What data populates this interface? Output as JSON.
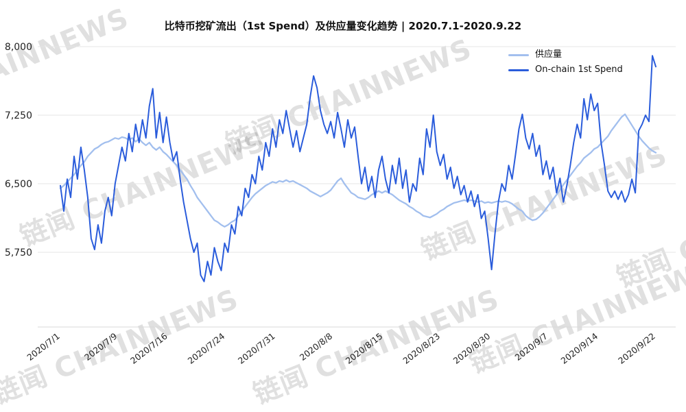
{
  "watermark": {
    "text": "链闻 CHAINNEWS"
  },
  "chart_data": {
    "type": "line",
    "title": "比特币挖矿流出（1st Spend）及供应量变化趋势 | 2020.7.1-2020.9.22",
    "grid": "horizontal",
    "legend_position": "top-right",
    "y_ticks": [
      8000,
      7250,
      6500,
      5750
    ],
    "y_tick_labels": [
      "8,000",
      "7,250",
      "6,500",
      "5,750"
    ],
    "ylim": [
      5000,
      8000
    ],
    "x_tick_labels": [
      "2020/7/1",
      "2020/7/9",
      "2020/7/16",
      "2020/7/24",
      "2020/7/31",
      "2020/8/8",
      "2020/8/15",
      "2020/8/23",
      "2020/8/30",
      "2020/9/7",
      "2020/9/14",
      "2020/9/22"
    ],
    "x_tick_days": [
      0,
      8,
      15,
      23,
      30,
      38,
      45,
      53,
      60,
      68,
      75,
      83
    ],
    "series": [
      {
        "name": "供应量",
        "color": "#a2bfee",
        "values": [
          6450,
          6480,
          6520,
          6560,
          6600,
          6650,
          6700,
          6740,
          6800,
          6840,
          6880,
          6900,
          6930,
          6950,
          6960,
          6980,
          7000,
          6990,
          7010,
          7000,
          6980,
          7000,
          6960,
          6990,
          6950,
          6920,
          6950,
          6900,
          6870,
          6900,
          6850,
          6820,
          6780,
          6740,
          6700,
          6650,
          6600,
          6550,
          6480,
          6420,
          6350,
          6300,
          6250,
          6200,
          6150,
          6100,
          6080,
          6050,
          6030,
          6050,
          6080,
          6100,
          6150,
          6200,
          6250,
          6300,
          6350,
          6390,
          6420,
          6450,
          6480,
          6500,
          6520,
          6510,
          6530,
          6520,
          6540,
          6520,
          6530,
          6510,
          6490,
          6470,
          6450,
          6420,
          6400,
          6380,
          6360,
          6380,
          6400,
          6430,
          6480,
          6530,
          6560,
          6500,
          6450,
          6400,
          6380,
          6350,
          6340,
          6330,
          6350,
          6380,
          6400,
          6420,
          6400,
          6420,
          6400,
          6380,
          6350,
          6320,
          6300,
          6280,
          6250,
          6230,
          6200,
          6180,
          6150,
          6140,
          6130,
          6150,
          6170,
          6200,
          6220,
          6250,
          6270,
          6290,
          6300,
          6310,
          6320,
          6310,
          6320,
          6310,
          6300,
          6310,
          6290,
          6300,
          6290,
          6300,
          6310,
          6300,
          6310,
          6300,
          6280,
          6250,
          6220,
          6200,
          6150,
          6120,
          6100,
          6110,
          6140,
          6180,
          6230,
          6280,
          6330,
          6380,
          6430,
          6490,
          6540,
          6590,
          6640,
          6690,
          6730,
          6780,
          6810,
          6840,
          6880,
          6900,
          6940,
          6980,
          7020,
          7080,
          7130,
          7180,
          7230,
          7260,
          7200,
          7140,
          7080,
          7020,
          6970,
          6930,
          6890,
          6860,
          6840
        ]
      },
      {
        "name": "On-chain 1st Spend",
        "color": "#2a5cdb",
        "values": [
          6480,
          6200,
          6550,
          6350,
          6800,
          6550,
          6900,
          6650,
          6350,
          5900,
          5780,
          6050,
          5850,
          6200,
          6350,
          6150,
          6500,
          6700,
          6900,
          6750,
          7050,
          6850,
          7150,
          6950,
          7200,
          7000,
          7350,
          7540,
          7000,
          7280,
          6950,
          7230,
          6950,
          6750,
          6850,
          6550,
          6300,
          6100,
          5900,
          5750,
          5850,
          5500,
          5430,
          5650,
          5500,
          5800,
          5650,
          5550,
          5850,
          5750,
          6050,
          5950,
          6250,
          6150,
          6450,
          6350,
          6600,
          6500,
          6800,
          6650,
          6950,
          6800,
          7100,
          6900,
          7200,
          7050,
          7300,
          7100,
          6900,
          7080,
          6850,
          7000,
          7150,
          7450,
          7680,
          7550,
          7300,
          7150,
          7050,
          7180,
          7000,
          7280,
          7100,
          6900,
          7200,
          7000,
          7120,
          6800,
          6500,
          6680,
          6420,
          6580,
          6350,
          6650,
          6800,
          6550,
          6400,
          6700,
          6500,
          6780,
          6450,
          6650,
          6300,
          6500,
          6420,
          6780,
          6600,
          7100,
          6900,
          7250,
          6850,
          6700,
          6820,
          6550,
          6680,
          6450,
          6580,
          6380,
          6480,
          6300,
          6420,
          6250,
          6380,
          6120,
          6200,
          5900,
          5560,
          5950,
          6300,
          6500,
          6420,
          6700,
          6550,
          6820,
          7100,
          7260,
          7000,
          6880,
          7050,
          6800,
          6920,
          6600,
          6750,
          6550,
          6680,
          6400,
          6560,
          6300,
          6480,
          6700,
          6950,
          7150,
          7000,
          7430,
          7200,
          7480,
          7300,
          7380,
          6950,
          6700,
          6420,
          6350,
          6420,
          6330,
          6420,
          6300,
          6380,
          6550,
          6400,
          7080,
          7150,
          7250,
          7180,
          7900,
          7780
        ]
      }
    ]
  }
}
